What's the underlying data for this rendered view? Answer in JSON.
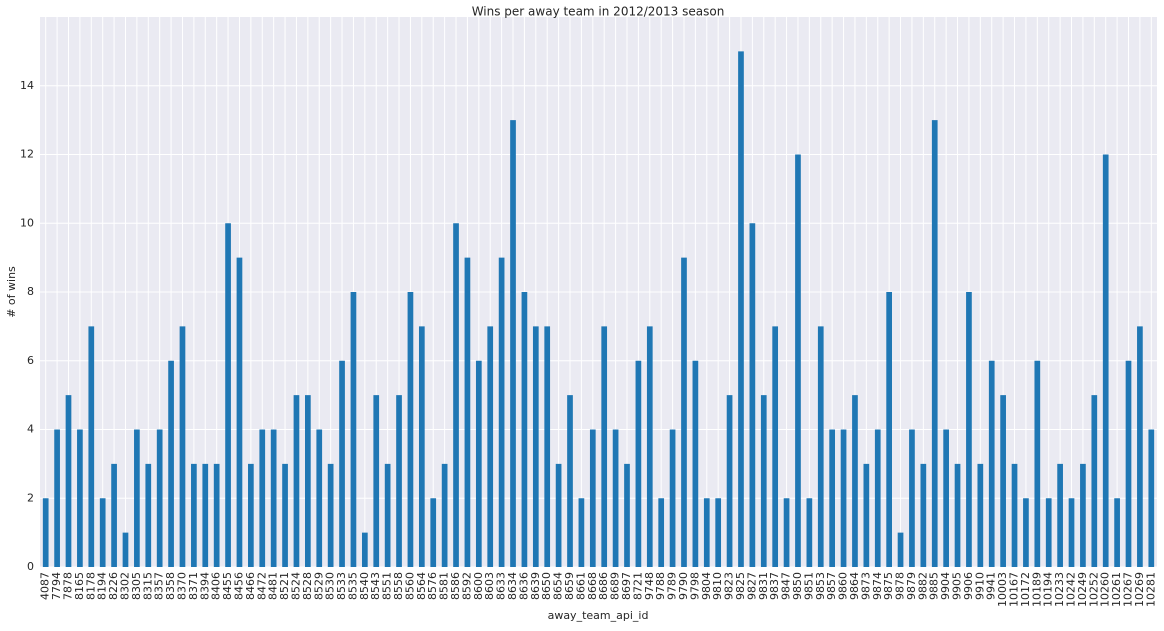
{
  "chart_data": {
    "type": "bar",
    "title": "Wins per away team in 2012/2013 season",
    "x_label": "away_team_api_id",
    "y_label": "# of wins",
    "categories": [
      "4087",
      "7794",
      "7878",
      "8165",
      "8178",
      "8194",
      "8226",
      "8302",
      "8305",
      "8315",
      "8357",
      "8358",
      "8370",
      "8371",
      "8394",
      "8406",
      "8455",
      "8456",
      "8466",
      "8472",
      "8481",
      "8521",
      "8524",
      "8528",
      "8529",
      "8530",
      "8533",
      "8535",
      "8540",
      "8543",
      "8551",
      "8558",
      "8560",
      "8564",
      "8576",
      "8581",
      "8586",
      "8592",
      "8600",
      "8603",
      "8633",
      "8634",
      "8636",
      "8639",
      "8650",
      "8654",
      "8659",
      "8661",
      "8668",
      "8686",
      "8689",
      "8697",
      "8721",
      "9748",
      "9788",
      "9789",
      "9790",
      "9798",
      "9804",
      "9810",
      "9823",
      "9825",
      "9827",
      "9831",
      "9837",
      "9847",
      "9850",
      "9851",
      "9853",
      "9857",
      "9860",
      "9864",
      "9873",
      "9874",
      "9875",
      "9878",
      "9879",
      "9882",
      "9885",
      "9904",
      "9905",
      "9906",
      "9910",
      "9941",
      "10003",
      "10167",
      "10172",
      "10189",
      "10194",
      "10233",
      "10242",
      "10249",
      "10252",
      "10260",
      "10261",
      "10267",
      "10269",
      "10281"
    ],
    "values": [
      2,
      4,
      5,
      4,
      7,
      2,
      3,
      1,
      4,
      3,
      4,
      6,
      7,
      3,
      3,
      3,
      10,
      9,
      3,
      4,
      4,
      3,
      5,
      5,
      4,
      3,
      6,
      8,
      1,
      5,
      3,
      5,
      8,
      7,
      2,
      3,
      10,
      9,
      6,
      7,
      9,
      13,
      8,
      7,
      7,
      3,
      5,
      2,
      4,
      7,
      4,
      3,
      6,
      7,
      2,
      4,
      9,
      6,
      2,
      2,
      5,
      15,
      10,
      5,
      7,
      2,
      12,
      2,
      7,
      4,
      4,
      5,
      3,
      4,
      8,
      1,
      4,
      3,
      13,
      4,
      3,
      8,
      3,
      6,
      5,
      3,
      2,
      6,
      2,
      3,
      2,
      3,
      5,
      12,
      2,
      6,
      7,
      4
    ],
    "color": "#1f77b4",
    "ylim": [
      0,
      16
    ],
    "yticks": [
      0,
      2,
      4,
      6,
      8,
      10,
      12,
      14
    ],
    "grid": true
  }
}
